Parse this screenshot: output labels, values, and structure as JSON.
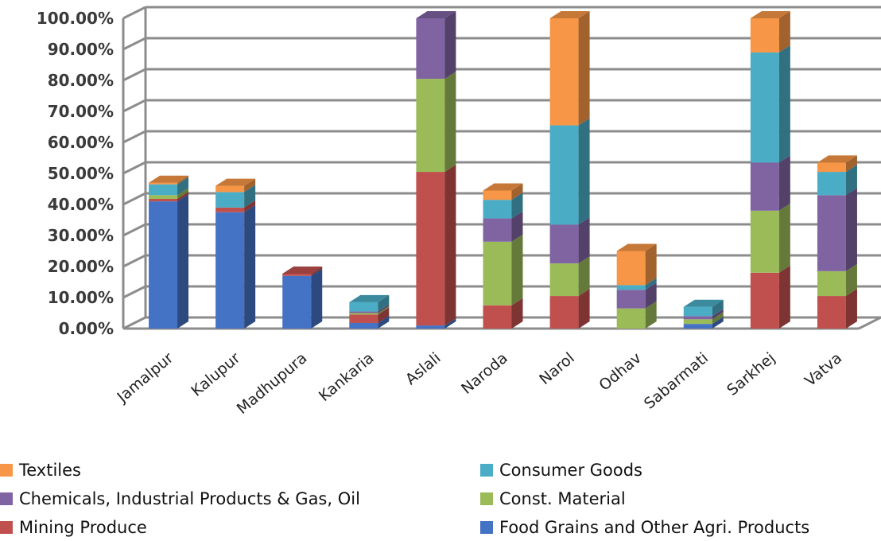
{
  "chart_data": {
    "type": "bar",
    "stacked": true,
    "three_d": true,
    "categories": [
      "Jamalpur",
      "Kalupur",
      "Madhupura",
      "Kankaria",
      "Aslali",
      "Naroda",
      "Narol",
      "Odhav",
      "Sabarmati",
      "Sarkhej",
      "Vatva"
    ],
    "y_ticks": [
      "0.00%",
      "10.00%",
      "20.00%",
      "30.00%",
      "40.00%",
      "50.00%",
      "60.00%",
      "70.00%",
      "80.00%",
      "90.00%",
      "100.00%"
    ],
    "ylim": [
      0,
      100
    ],
    "grid": true,
    "legend_position": "bottom",
    "series": [
      {
        "name": "Food Grains and Other Agri. Products",
        "color": "#4472C4",
        "values": [
          41,
          37.5,
          17,
          1.8,
          1,
          0,
          0,
          0,
          1.5,
          0,
          0
        ]
      },
      {
        "name": "Mining Produce",
        "color": "#C0504D",
        "values": [
          0.8,
          1.5,
          0.7,
          2.7,
          49.5,
          7.5,
          10.5,
          0,
          0,
          18,
          10.5
        ]
      },
      {
        "name": "Const. Material",
        "color": "#9BBB59",
        "values": [
          1.2,
          0,
          0,
          0.5,
          30,
          20.5,
          10.5,
          6.5,
          1.5,
          20,
          8
        ]
      },
      {
        "name": "Chemicals, Industrial Products & Gas, Oil",
        "color": "#8064A2",
        "values": [
          0,
          0,
          0,
          0.5,
          19.5,
          7.5,
          12.5,
          6,
          1,
          15.5,
          24.5
        ]
      },
      {
        "name": "Consumer Goods",
        "color": "#4BACC6",
        "values": [
          3.5,
          5,
          0,
          3,
          0,
          6,
          32,
          1.5,
          3,
          35.5,
          7.5
        ]
      },
      {
        "name": "Textiles",
        "color": "#F79646",
        "values": [
          0.5,
          2,
          0,
          0,
          0,
          3,
          34.5,
          11,
          0,
          11,
          3
        ]
      }
    ]
  }
}
